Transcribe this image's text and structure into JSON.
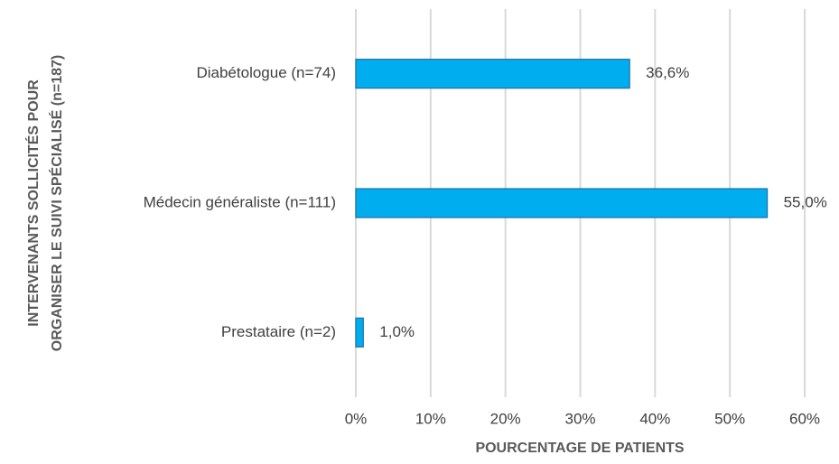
{
  "chart_data": {
    "type": "bar",
    "orientation": "horizontal",
    "x_label": "POURCENTAGE DE PATIENTS",
    "y_label": [
      "INTERVENANTS SOLLICITÉS POUR",
      "ORGANISER LE SUIVI SPÉCIALISÉ (n=187)"
    ],
    "categories": [
      "Diabétologue (n=74)",
      "Médecin généraliste (n=111)",
      "Prestataire (n=2)"
    ],
    "values": [
      36.6,
      55.0,
      1.0
    ],
    "value_labels": [
      "36,6%",
      "55,0%",
      "1,0%"
    ],
    "color": "#00aeef",
    "edge_color": "#1f6fa8",
    "xlim": [
      0,
      60
    ],
    "xticks": [
      {
        "value": 0,
        "label": "0%"
      },
      {
        "value": 10,
        "label": "10%"
      },
      {
        "value": 20,
        "label": "20%"
      },
      {
        "value": 30,
        "label": "30%"
      },
      {
        "value": 40,
        "label": "40%"
      },
      {
        "value": 50,
        "label": "50%"
      },
      {
        "value": 60,
        "label": "60%"
      }
    ],
    "grid": true
  }
}
